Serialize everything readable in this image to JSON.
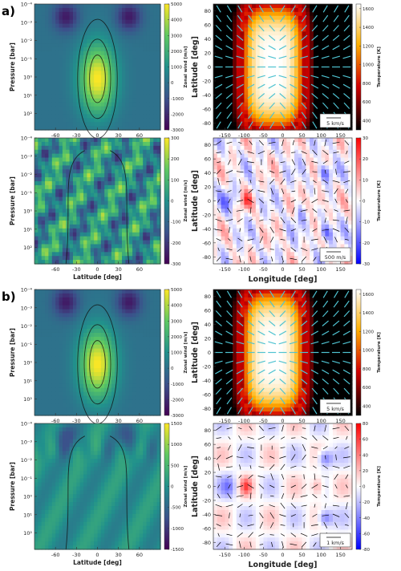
{
  "chart_data": [
    {
      "type": "heatmap",
      "panel_label": "a)",
      "ylabel": "Pressure [bar]",
      "xlabel": "",
      "x_ticks": [
        "-60",
        "-30",
        "0",
        "30",
        "60"
      ],
      "x_values": [
        -60,
        -30,
        0,
        30,
        60
      ],
      "xlim": [
        -90,
        90
      ],
      "y_ticks": [
        "10⁻⁴",
        "10⁻³",
        "10⁻²",
        "10⁻¹",
        "10⁰",
        "10¹",
        "10²"
      ],
      "y_log_values": [
        -4,
        -3,
        -2,
        -1,
        0,
        1,
        2
      ],
      "ylim_log": [
        -4,
        2.9
      ],
      "colorbar_label": "Zonal wind [m/s]",
      "colorbar_ticks": [
        "5000",
        "4000",
        "3000",
        "2000",
        "1000",
        "0",
        "-1000",
        "-2000",
        "-3000"
      ],
      "clim": [
        -3000,
        5000
      ],
      "colormap": "viridis",
      "peak": {
        "lat": 0,
        "log_p": 0,
        "value": 5000
      }
    },
    {
      "type": "heatmap",
      "panel_label": "",
      "ylabel": "Pressure [bar]",
      "xlabel": "Latitude [deg]",
      "x_ticks": [
        "-60",
        "-30",
        "0",
        "30",
        "60"
      ],
      "x_values": [
        -60,
        -30,
        0,
        30,
        60
      ],
      "xlim": [
        -90,
        90
      ],
      "y_ticks": [
        "10⁻⁴",
        "10⁻³",
        "10⁻²",
        "10⁻¹",
        "10⁰",
        "10¹",
        "10²"
      ],
      "y_log_values": [
        -4,
        -3,
        -2,
        -1,
        0,
        1,
        2
      ],
      "ylim_log": [
        -4,
        2.9
      ],
      "colorbar_label": "Zonal wind [m/s]",
      "colorbar_ticks": [
        "300",
        "200",
        "100",
        "0",
        "-100",
        "-200",
        "-300"
      ],
      "clim": [
        -300,
        300
      ],
      "colormap": "viridis"
    },
    {
      "type": "heatmap",
      "panel_label": "",
      "ylabel": "Latitude [deg]",
      "xlabel": "",
      "x_ticks": [
        "-150",
        "-100",
        "-50",
        "0",
        "50",
        "100",
        "150"
      ],
      "x_values": [
        -150,
        -100,
        -50,
        0,
        50,
        100,
        150
      ],
      "xlim": [
        -180,
        180
      ],
      "y_ticks": [
        "80",
        "60",
        "40",
        "20",
        "0",
        "-20",
        "-40",
        "-60",
        "-80"
      ],
      "y_values": [
        80,
        60,
        40,
        20,
        0,
        -20,
        -40,
        -60,
        -80
      ],
      "ylim": [
        -90,
        90
      ],
      "colorbar_label": "Temperature [K]",
      "colorbar_ticks": [
        "1600",
        "1400",
        "1200",
        "1000",
        "800",
        "600",
        "400"
      ],
      "clim": [
        300,
        1650
      ],
      "colormap": "hot",
      "vector_color": "#4fc3d1",
      "vector_scale_label": "5 km/s"
    },
    {
      "type": "heatmap",
      "panel_label": "",
      "ylabel": "Latitude [deg]",
      "xlabel": "Longitude [deg]",
      "x_ticks": [
        "-150",
        "-100",
        "-50",
        "0",
        "50",
        "100",
        "150"
      ],
      "x_values": [
        -150,
        -100,
        -50,
        0,
        50,
        100,
        150
      ],
      "xlim": [
        -180,
        180
      ],
      "y_ticks": [
        "80",
        "60",
        "40",
        "20",
        "0",
        "-20",
        "-40",
        "-60",
        "-80"
      ],
      "y_values": [
        80,
        60,
        40,
        20,
        0,
        -20,
        -40,
        -60,
        -80
      ],
      "ylim": [
        -90,
        90
      ],
      "colorbar_label": "Temperature [K]",
      "colorbar_ticks": [
        "30",
        "20",
        "10",
        "0",
        "-10",
        "-20",
        "-30"
      ],
      "clim": [
        -30,
        30
      ],
      "colormap": "bwr",
      "vector_color": "#000000",
      "vector_scale_label": "500 m/s"
    },
    {
      "type": "heatmap",
      "panel_label": "b)",
      "ylabel": "Pressure [bar]",
      "xlabel": "Latitude [deg]",
      "x_ticks": [
        "-60",
        "-30",
        "0",
        "30",
        "60"
      ],
      "x_values": [
        -60,
        -30,
        0,
        30,
        60
      ],
      "xlim": [
        -90,
        90
      ],
      "y_ticks": [
        "10⁻⁴",
        "10⁻³",
        "10⁻²",
        "10⁻¹",
        "10⁰",
        "10¹",
        "10²"
      ],
      "y_log_values": [
        -4,
        -3,
        -2,
        -1,
        0,
        1,
        2
      ],
      "ylim_log": [
        -4,
        2.9
      ],
      "colorbar_label": "Zonal wind [m/s]",
      "colorbar_ticks": [
        "5000",
        "4000",
        "3000",
        "2000",
        "1000",
        "0",
        "-1000",
        "-2000",
        "-3000"
      ],
      "clim": [
        -3000,
        5000
      ],
      "colormap": "viridis",
      "peak": {
        "lat": 0,
        "log_p": 0,
        "value": 4800
      }
    },
    {
      "type": "heatmap",
      "panel_label": "",
      "ylabel": "Pressure [bar]",
      "xlabel": "Latitude [deg]",
      "x_ticks": [
        "-60",
        "-30",
        "0",
        "30",
        "60"
      ],
      "x_values": [
        -60,
        -30,
        0,
        30,
        60
      ],
      "xlim": [
        -90,
        90
      ],
      "y_ticks": [
        "10⁻⁴",
        "10⁻³",
        "10⁻²",
        "10⁻¹",
        "10⁰",
        "10¹",
        "10²"
      ],
      "y_log_values": [
        -4,
        -3,
        -2,
        -1,
        0,
        1,
        2
      ],
      "ylim_log": [
        -4,
        2.9
      ],
      "colorbar_label": "Zonal wind [m/s]",
      "colorbar_ticks": [
        "1500",
        "1000",
        "500",
        "0",
        "-500",
        "-1000",
        "-1500"
      ],
      "clim": [
        -1500,
        1500
      ],
      "colormap": "viridis"
    },
    {
      "type": "heatmap",
      "panel_label": "",
      "ylabel": "Latitude [deg]",
      "xlabel": "",
      "x_ticks": [
        "-150",
        "-100",
        "-50",
        "0",
        "50",
        "100",
        "150"
      ],
      "x_values": [
        -150,
        -100,
        -50,
        0,
        50,
        100,
        150
      ],
      "xlim": [
        -180,
        180
      ],
      "y_ticks": [
        "80",
        "60",
        "40",
        "20",
        "0",
        "-20",
        "-40",
        "-60",
        "-80"
      ],
      "y_values": [
        80,
        60,
        40,
        20,
        0,
        -20,
        -40,
        -60,
        -80
      ],
      "ylim": [
        -90,
        90
      ],
      "colorbar_label": "Temperature [K]",
      "colorbar_ticks": [
        "1600",
        "1400",
        "1200",
        "1000",
        "800",
        "600",
        "400"
      ],
      "clim": [
        300,
        1650
      ],
      "colormap": "hot",
      "vector_color": "#4fc3d1",
      "vector_scale_label": "5 km/s"
    },
    {
      "type": "heatmap",
      "panel_label": "",
      "ylabel": "Latitude [deg]",
      "xlabel": "Longitude [deg]",
      "x_ticks": [
        "-150",
        "-100",
        "-50",
        "0",
        "50",
        "100",
        "150"
      ],
      "x_values": [
        -150,
        -100,
        -50,
        0,
        50,
        100,
        150
      ],
      "xlim": [
        -180,
        180
      ],
      "y_ticks": [
        "80",
        "60",
        "40",
        "20",
        "0",
        "-20",
        "-40",
        "-60",
        "-80"
      ],
      "y_values": [
        80,
        60,
        40,
        20,
        0,
        -20,
        -40,
        -60,
        -80
      ],
      "ylim": [
        -90,
        90
      ],
      "colorbar_label": "Temperature [K]",
      "colorbar_ticks": [
        "80",
        "60",
        "40",
        "20",
        "0",
        "-20",
        "-40",
        "-60",
        "-80"
      ],
      "clim": [
        -80,
        80
      ],
      "colormap": "bwr",
      "vector_color": "#000000",
      "vector_scale_label": "1 km/s"
    }
  ]
}
